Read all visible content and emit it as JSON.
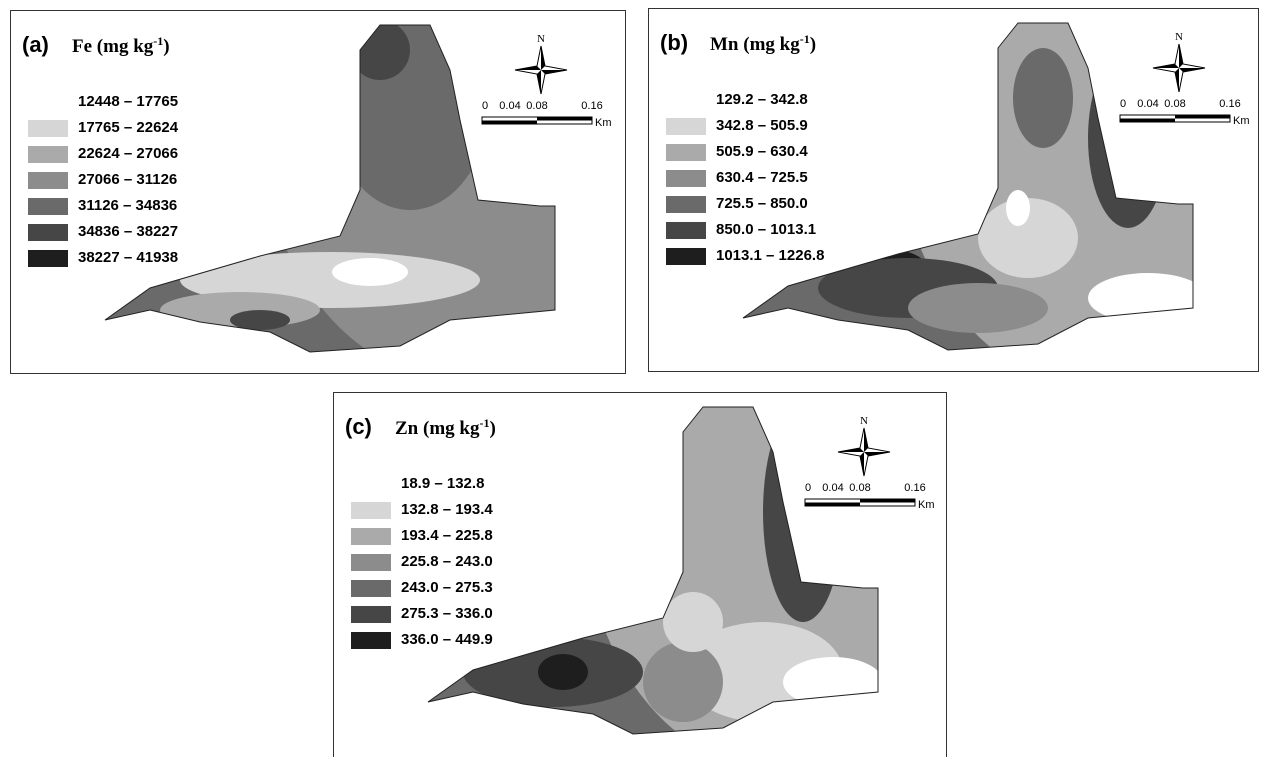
{
  "legend_colors": [
    "#ffffff",
    "#d6d6d6",
    "#aaaaaa",
    "#8c8c8c",
    "#6a6a6a",
    "#464646",
    "#1e1e1e"
  ],
  "panels": [
    {
      "label": "(a)",
      "title": "Fe (mg kg",
      "title_sup": "-1",
      "title_end": ")",
      "legend": [
        "12448 – 17765",
        "17765 – 22624",
        "22624 – 27066",
        "27066 – 31126",
        "31126 – 34836",
        "34836 – 38227",
        "38227 – 41938"
      ],
      "north": "N",
      "scale": [
        "0",
        "0.04",
        "0.08",
        "0.16"
      ],
      "scale_unit": "Km"
    },
    {
      "label": "(b)",
      "title": "Mn (mg kg",
      "title_sup": "-1",
      "title_end": ")",
      "legend": [
        "129.2 – 342.8",
        "342.8 – 505.9",
        "505.9 – 630.4",
        "630.4 – 725.5",
        "725.5 – 850.0",
        "850.0 – 1013.1",
        "1013.1 – 1226.8"
      ],
      "north": "N",
      "scale": [
        "0",
        "0.04",
        "0.08",
        "0.16"
      ],
      "scale_unit": "Km"
    },
    {
      "label": "(c)",
      "title": "Zn (mg kg",
      "title_sup": "-1",
      "title_end": ")",
      "legend": [
        "18.9 – 132.8",
        "132.8 – 193.4",
        "193.4 – 225.8",
        "225.8 – 243.0",
        "243.0 – 275.3",
        "275.3 – 336.0",
        "336.0 – 449.9"
      ],
      "north": "N",
      "scale": [
        "0",
        "0.04",
        "0.08",
        "0.16"
      ],
      "scale_unit": "Km"
    }
  ]
}
